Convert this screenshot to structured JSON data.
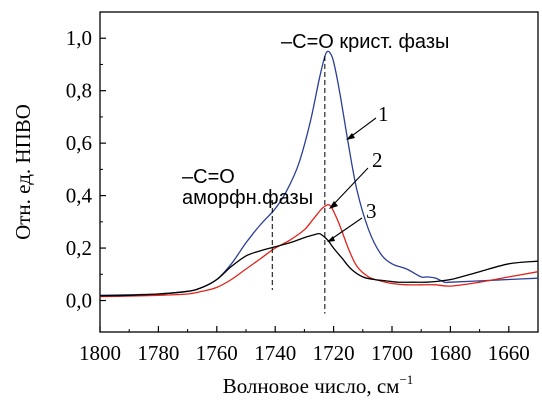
{
  "chart_data": {
    "type": "line",
    "title": "",
    "xlabel": "Волновое число, см",
    "xlabel_sup": "−1",
    "ylabel": "Отн. ед. НПВО",
    "xlim": [
      1800,
      1650
    ],
    "ylim": [
      -0.12,
      1.1
    ],
    "x_reversed": true,
    "grid": false,
    "x_ticks": [
      1800,
      1780,
      1760,
      1740,
      1720,
      1700,
      1680,
      1660
    ],
    "x_tick_labels": [
      "1800",
      "1780",
      "1760",
      "1740",
      "1720",
      "1700",
      "1680",
      "1660"
    ],
    "y_ticks": [
      0.0,
      0.2,
      0.4,
      0.6,
      0.8,
      1.0
    ],
    "y_tick_labels": [
      "0,0",
      "0,2",
      "0,4",
      "0,6",
      "0,8",
      "1,0"
    ],
    "series": [
      {
        "name": "1",
        "color": "#2b3f96",
        "x": [
          1800,
          1790,
          1780,
          1770,
          1765,
          1760,
          1755,
          1750,
          1745,
          1740,
          1736,
          1732,
          1728,
          1725,
          1723,
          1722,
          1721,
          1720,
          1718,
          1715,
          1712,
          1708,
          1704,
          1700,
          1695,
          1690,
          1688,
          1685,
          1682,
          1680,
          1670,
          1660,
          1650
        ],
        "y": [
          0.02,
          0.022,
          0.025,
          0.035,
          0.05,
          0.08,
          0.14,
          0.22,
          0.29,
          0.35,
          0.42,
          0.52,
          0.68,
          0.84,
          0.93,
          0.95,
          0.94,
          0.91,
          0.8,
          0.6,
          0.42,
          0.27,
          0.18,
          0.14,
          0.12,
          0.09,
          0.09,
          0.085,
          0.07,
          0.07,
          0.075,
          0.08,
          0.085
        ]
      },
      {
        "name": "2",
        "color": "#e2231a",
        "x": [
          1800,
          1790,
          1780,
          1770,
          1765,
          1760,
          1755,
          1750,
          1745,
          1740,
          1735,
          1730,
          1727,
          1724,
          1722,
          1721,
          1720,
          1718,
          1715,
          1712,
          1708,
          1704,
          1700,
          1695,
          1690,
          1685,
          1680,
          1670,
          1660,
          1650
        ],
        "y": [
          0.015,
          0.017,
          0.02,
          0.025,
          0.035,
          0.05,
          0.08,
          0.12,
          0.16,
          0.2,
          0.23,
          0.27,
          0.31,
          0.35,
          0.365,
          0.36,
          0.34,
          0.29,
          0.2,
          0.13,
          0.09,
          0.075,
          0.065,
          0.06,
          0.06,
          0.06,
          0.055,
          0.07,
          0.09,
          0.11
        ]
      },
      {
        "name": "3",
        "color": "#000000",
        "x": [
          1800,
          1790,
          1780,
          1770,
          1765,
          1760,
          1755,
          1750,
          1745,
          1740,
          1735,
          1730,
          1727,
          1725,
          1724,
          1722,
          1720,
          1717,
          1714,
          1710,
          1706,
          1702,
          1698,
          1693,
          1688,
          1683,
          1678,
          1670,
          1660,
          1650
        ],
        "y": [
          0.018,
          0.02,
          0.025,
          0.035,
          0.05,
          0.08,
          0.13,
          0.17,
          0.19,
          0.205,
          0.22,
          0.24,
          0.25,
          0.255,
          0.25,
          0.23,
          0.2,
          0.16,
          0.12,
          0.09,
          0.08,
          0.075,
          0.07,
          0.07,
          0.07,
          0.075,
          0.085,
          0.11,
          0.14,
          0.15
        ]
      }
    ],
    "annotations": [
      {
        "text": "–C=O крист. фазы",
        "x": 1723
      },
      {
        "text_line1": "–C=O",
        "text_line2": "аморфн.фазы",
        "x": 1741
      }
    ]
  }
}
